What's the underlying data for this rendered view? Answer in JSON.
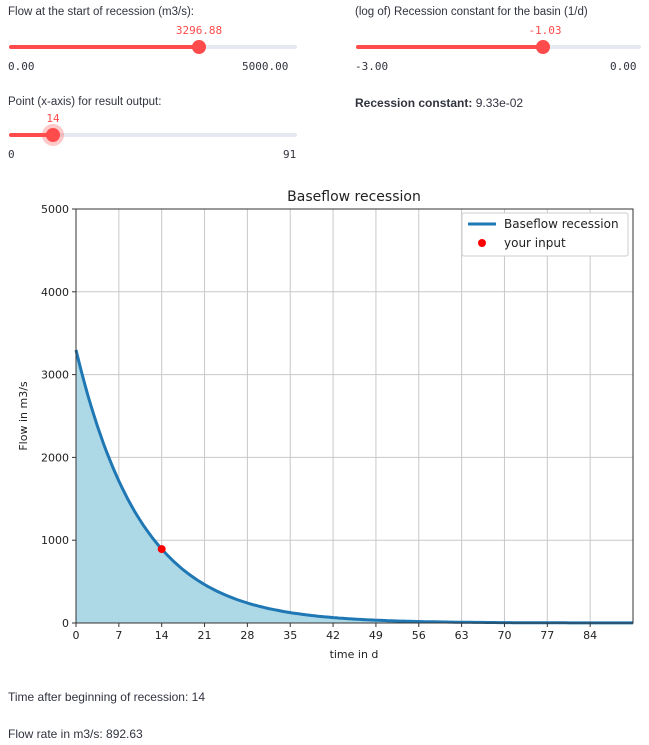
{
  "sliders": [
    {
      "label": "Flow at the start of recession (m3/s):",
      "value": "3296.88",
      "min": "0.00",
      "max": "5000.00",
      "fraction": 0.6594
    },
    {
      "label": "(log of) Recession constant for the basin (1/d)",
      "value": "-1.03",
      "min": "-3.00",
      "max": "0.00",
      "fraction": 0.6567
    },
    {
      "label": "Point (x-axis) for result output:",
      "value": "14",
      "min": "0",
      "max": "91",
      "fraction": 0.1538
    }
  ],
  "recession": {
    "label": "Recession constant:",
    "value": "9.33e-02"
  },
  "results": {
    "time": "Time after beginning of recession: 14",
    "flow": "Flow rate in m3/s: 892.63"
  },
  "chart_data": {
    "type": "area",
    "title": "Baseflow recession",
    "xlabel": "time in d",
    "ylabel": "Flow in m3/s",
    "xlim": [
      0,
      91
    ],
    "ylim": [
      0,
      5000
    ],
    "xticks": [
      "0",
      "7",
      "14",
      "21",
      "28",
      "35",
      "42",
      "49",
      "56",
      "63",
      "70",
      "77",
      "84"
    ],
    "yticks": [
      "0",
      "1000",
      "2000",
      "3000",
      "4000",
      "5000"
    ],
    "grid": true,
    "model": {
      "Q0": 3296.88,
      "k": 0.0933
    },
    "series": [
      {
        "name": "Baseflow recession",
        "color": "#1f77b4",
        "fill": "#add8e6"
      }
    ],
    "point": {
      "name": "your input",
      "x": 14,
      "y": 892.63,
      "color": "#ff0000"
    },
    "legend": "top-right"
  }
}
